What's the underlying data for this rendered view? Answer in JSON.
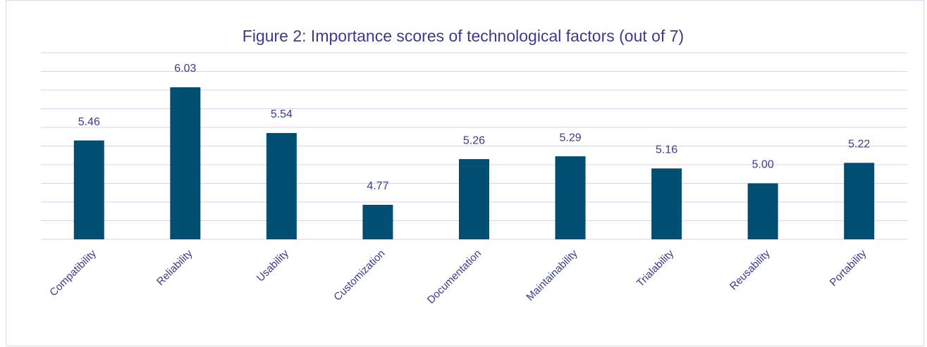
{
  "chart_data": {
    "type": "bar",
    "title": "Figure 2: Importance scores of technological factors (out of 7)",
    "categories": [
      "Compatibility",
      "Reliability",
      "Usability",
      "Customization",
      "Documentation",
      "Maintainability",
      "Trialability",
      "Reusability",
      "Portability"
    ],
    "values": [
      5.46,
      6.03,
      5.54,
      4.77,
      5.26,
      5.29,
      5.16,
      5.0,
      5.22
    ],
    "value_labels": [
      "5.46",
      "6.03",
      "5.54",
      "4.77",
      "5.26",
      "5.29",
      "5.16",
      "5.00",
      "5.22"
    ],
    "color": "#004f72",
    "ylim": [
      4.4,
      6.4
    ],
    "yticks": [
      4.4,
      4.6,
      4.8,
      5.0,
      5.2,
      5.4,
      5.6,
      5.8,
      6.0,
      6.2,
      6.4
    ],
    "grid": true
  }
}
